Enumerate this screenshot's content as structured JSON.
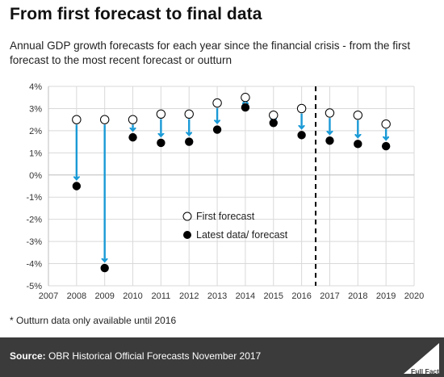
{
  "title": "From first forecast to final data",
  "subtitle": "Annual GDP growth forecasts for each year since the financial crisis - from the first forecast to the most recent forecast or outturn",
  "footnote": "* Outturn data only available until 2016",
  "source": {
    "label": "Source:",
    "text": "OBR Historical Official Forecasts November 2017"
  },
  "logo_text": "Full Fact",
  "colors": {
    "arrow": "#1a9ad6",
    "marker_first": "#ffffff",
    "marker_latest": "#000000",
    "footer_bg": "#3b3b3b",
    "divider": "#000000"
  },
  "chart_data": {
    "type": "scatter",
    "x": [
      2008,
      2009,
      2010,
      2011,
      2012,
      2013,
      2014,
      2015,
      2016,
      2017,
      2018,
      2019
    ],
    "series": [
      {
        "name": "First forecast",
        "values": [
          2.5,
          2.5,
          2.5,
          2.75,
          2.75,
          3.25,
          3.5,
          2.7,
          3.0,
          2.8,
          2.7,
          2.3
        ]
      },
      {
        "name": "Latest data/ forecast",
        "values": [
          -0.5,
          -4.2,
          1.7,
          1.45,
          1.5,
          2.05,
          3.05,
          2.35,
          1.8,
          1.55,
          1.4,
          1.3
        ]
      }
    ],
    "x_ticks": [
      2007,
      2008,
      2009,
      2010,
      2011,
      2012,
      2013,
      2014,
      2015,
      2016,
      2017,
      2018,
      2019,
      2020
    ],
    "y_ticks": [
      "4%",
      "3%",
      "2%",
      "1%",
      "0%",
      "-1%",
      "-2%",
      "-3%",
      "-4%",
      "-5%"
    ],
    "y_tick_values": [
      4,
      3,
      2,
      1,
      0,
      -1,
      -2,
      -3,
      -4,
      -5
    ],
    "xlim": [
      2007,
      2020
    ],
    "ylim": [
      -5,
      4
    ],
    "divider_x": 2016.5,
    "grid": true,
    "legend_position": "center",
    "annotation": "arrows from first forecast to latest data/ forecast"
  }
}
